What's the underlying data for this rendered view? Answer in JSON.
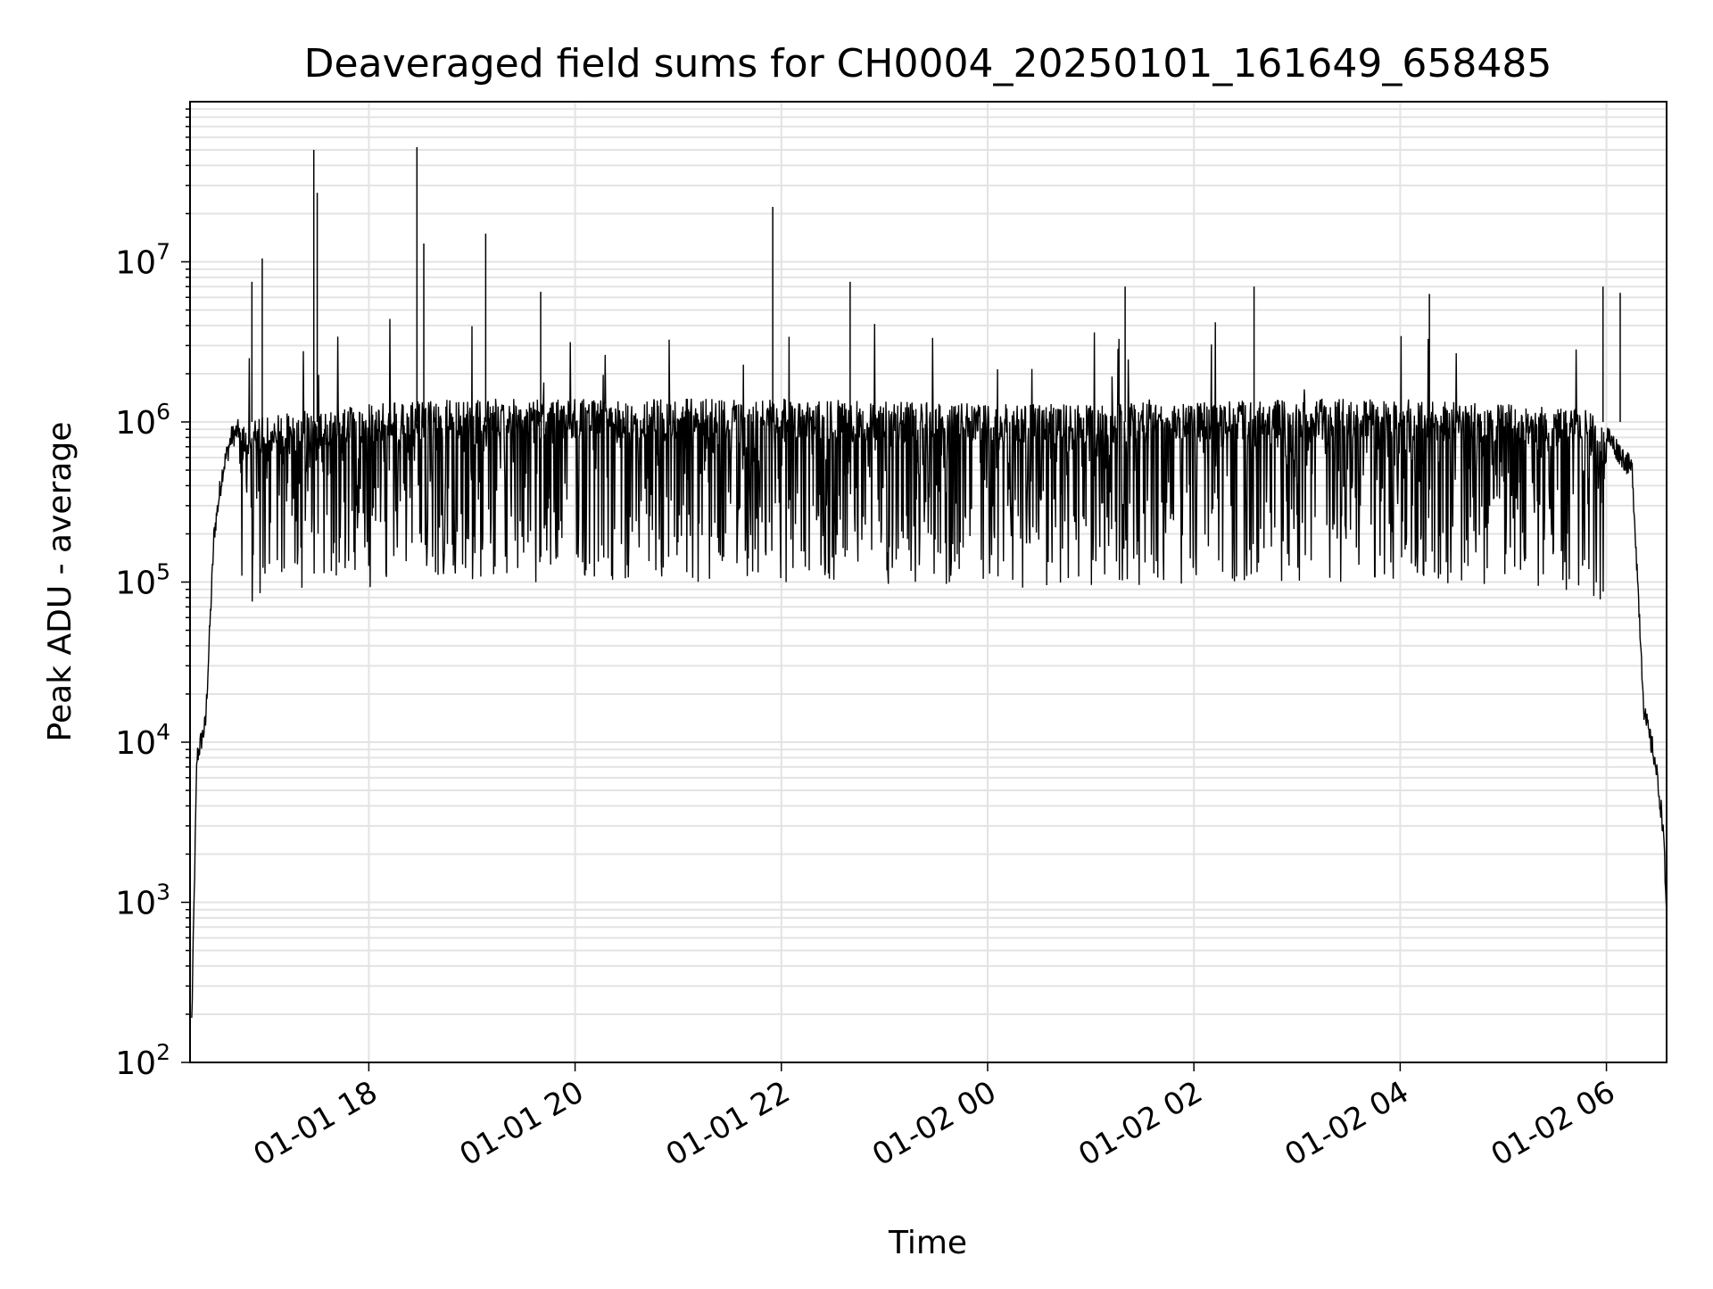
{
  "chart_data": {
    "type": "line",
    "title": "Deaveraged field sums for CH0004_20250101_161649_658485",
    "xlabel": "Time",
    "ylabel": "Peak ADU - average",
    "yscale": "log",
    "ylim": [
      100,
      100000000
    ],
    "xlim": [
      "2025-01-01 16:16",
      "2025-01-02 06:35"
    ],
    "grid": true,
    "xticks": [
      {
        "value": "2025-01-01 18:00",
        "label": "01-01 18"
      },
      {
        "value": "2025-01-01 20:00",
        "label": "01-01 20"
      },
      {
        "value": "2025-01-01 22:00",
        "label": "01-01 22"
      },
      {
        "value": "2025-01-02 00:00",
        "label": "01-02 00"
      },
      {
        "value": "2025-01-02 02:00",
        "label": "01-02 02"
      },
      {
        "value": "2025-01-02 04:00",
        "label": "01-02 04"
      },
      {
        "value": "2025-01-02 06:00",
        "label": "01-02 06"
      }
    ],
    "yticks": [
      {
        "value": 100,
        "base": "10",
        "exp": "2"
      },
      {
        "value": 1000,
        "base": "10",
        "exp": "3"
      },
      {
        "value": 10000,
        "base": "10",
        "exp": "4"
      },
      {
        "value": 100000,
        "base": "10",
        "exp": "5"
      },
      {
        "value": 1000000,
        "base": "10",
        "exp": "6"
      },
      {
        "value": 10000000,
        "base": "10",
        "exp": "7"
      }
    ],
    "series_color": "#000000",
    "series": [
      {
        "values_summary": "Noisy signal: band roughly 1e5 to 1.5e6 from about 16:40 to 06:00, ramps up from ~1e2 at start and drops to ~1e3 at end",
        "x": [
          "2025-01-01 16:17",
          "2025-01-01 16:20",
          "2025-01-01 16:25",
          "2025-01-01 16:30",
          "2025-01-01 16:35",
          "2025-01-01 16:40",
          "2025-01-01 16:45",
          "2025-01-01 16:50",
          "2025-01-01 17:00",
          "2025-01-01 17:30",
          "2025-01-01 18:00",
          "2025-01-01 19:00",
          "2025-01-01 20:00",
          "2025-01-01 21:00",
          "2025-01-01 22:00",
          "2025-01-01 23:00",
          "2025-01-02 00:00",
          "2025-01-02 01:00",
          "2025-01-02 02:00",
          "2025-01-02 03:00",
          "2025-01-02 04:00",
          "2025-01-02 05:00",
          "2025-01-02 05:50",
          "2025-01-02 06:05",
          "2025-01-02 06:15",
          "2025-01-02 06:22",
          "2025-01-02 06:28",
          "2025-01-02 06:33",
          "2025-01-02 06:35"
        ],
        "values": [
          180,
          8000,
          13000,
          200000,
          500000,
          800000,
          900000,
          1000000,
          1100000,
          1200000,
          1300000,
          1400000,
          1400000,
          1400000,
          1400000,
          1350000,
          1300000,
          1300000,
          1350000,
          1400000,
          1400000,
          1300000,
          1200000,
          700000,
          500000,
          15000,
          8000,
          3000,
          800
        ]
      }
    ],
    "spikes": [
      {
        "x": "2025-01-01 17:28",
        "y": 50000000
      },
      {
        "x": "2025-01-01 17:30",
        "y": 27000000
      },
      {
        "x": "2025-01-01 18:28",
        "y": 52000000
      },
      {
        "x": "2025-01-01 18:32",
        "y": 13000000
      },
      {
        "x": "2025-01-01 19:08",
        "y": 15000000
      },
      {
        "x": "2025-01-01 16:58",
        "y": 10500000
      },
      {
        "x": "2025-01-01 16:52",
        "y": 7500000
      },
      {
        "x": "2025-01-01 19:40",
        "y": 6500000
      },
      {
        "x": "2025-01-01 21:55",
        "y": 22000000
      },
      {
        "x": "2025-01-01 22:40",
        "y": 7500000
      },
      {
        "x": "2025-01-02 01:20",
        "y": 7000000
      },
      {
        "x": "2025-01-02 02:35",
        "y": 7000000
      },
      {
        "x": "2025-01-02 04:17",
        "y": 6300000
      },
      {
        "x": "2025-01-02 05:58",
        "y": 7000000
      },
      {
        "x": "2025-01-02 06:08",
        "y": 6400000
      }
    ]
  }
}
